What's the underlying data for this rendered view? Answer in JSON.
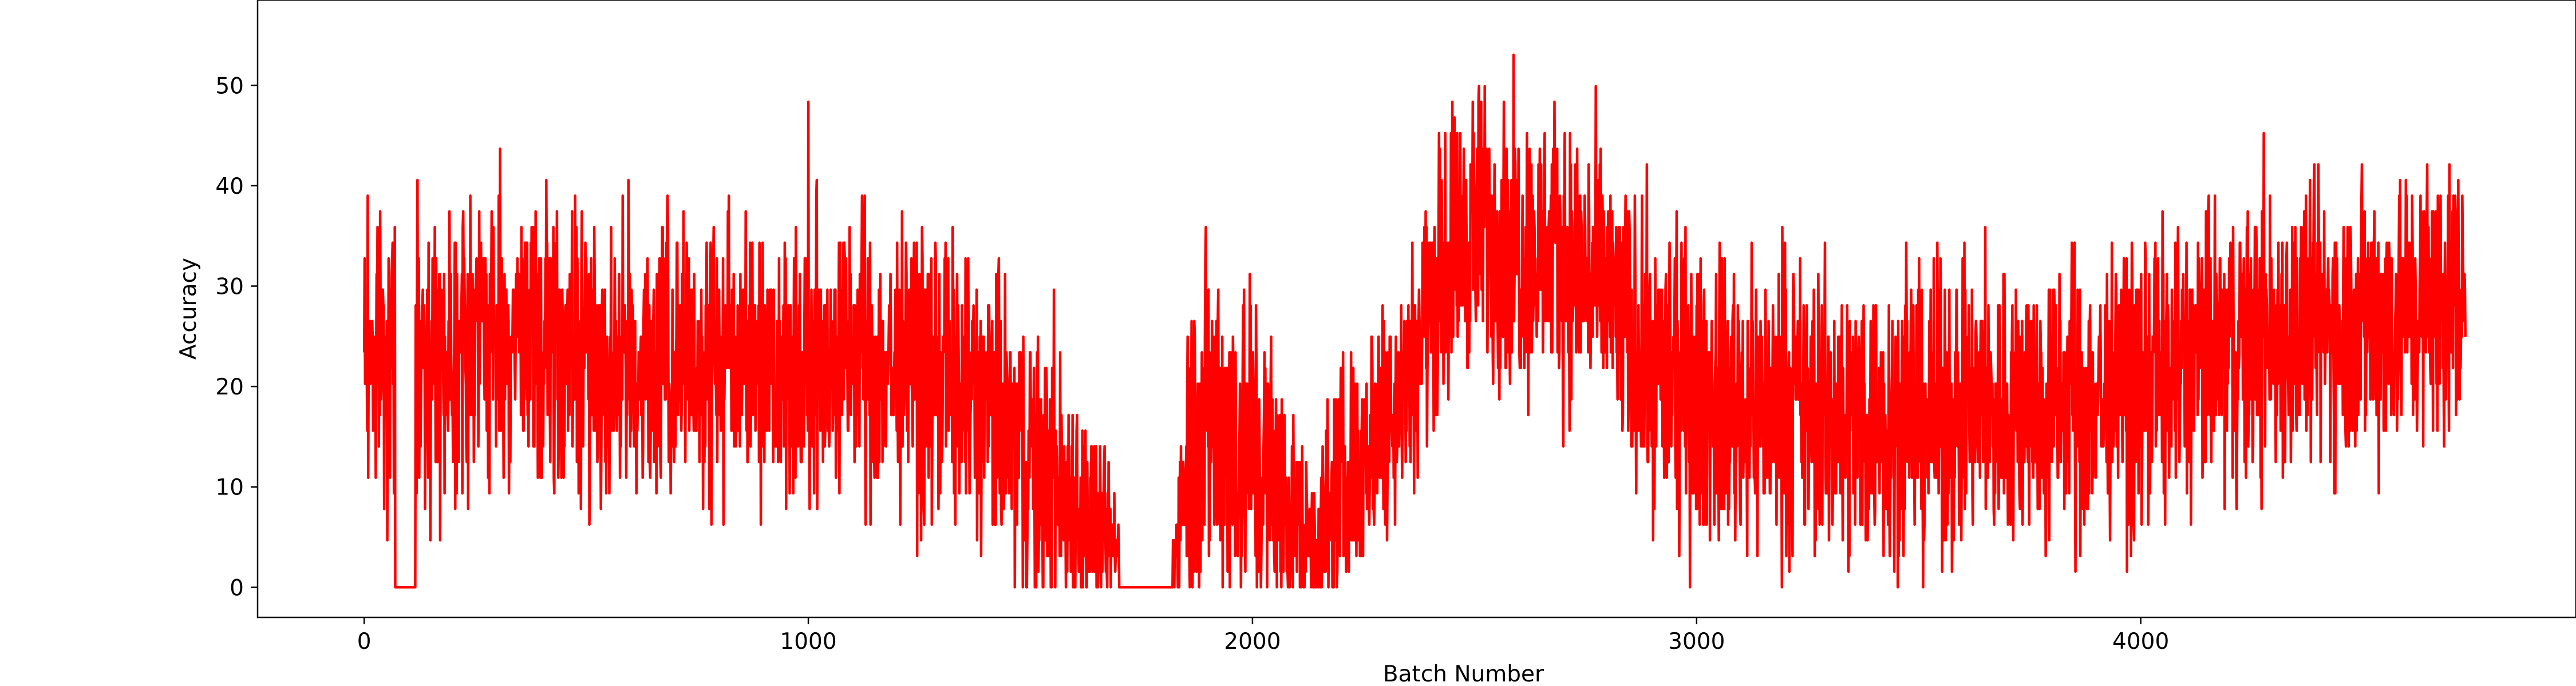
{
  "chart_data": {
    "type": "line",
    "title": "",
    "xlabel": "Batch Number",
    "ylabel": "Accuracy",
    "xlim": [
      -240,
      4980
    ],
    "ylim": [
      -3,
      58.5
    ],
    "xticks": [
      0,
      1000,
      2000,
      3000,
      4000
    ],
    "yticks": [
      0,
      10,
      20,
      30,
      40,
      50
    ],
    "grid": false,
    "legend": "none",
    "series": [
      {
        "color": "#ff0000",
        "x_start": 0,
        "x_step": 1,
        "length": 4732,
        "noise_seed": 7,
        "plateau_segments": [
          {
            "x": [
              70,
              115
            ],
            "value": 0
          },
          {
            "x": [
              1700,
              1820
            ],
            "value": 0
          }
        ],
        "envelope": {
          "x": [
            0,
            30,
            60,
            140,
            200,
            300,
            400,
            500,
            600,
            700,
            800,
            900,
            1000,
            1100,
            1200,
            1300,
            1400,
            1480,
            1550,
            1600,
            1660,
            1720,
            1830,
            1850,
            1900,
            1950,
            2000,
            2050,
            2100,
            2150,
            2200,
            2250,
            2300,
            2350,
            2400,
            2450,
            2500,
            2550,
            2600,
            2650,
            2700,
            2750,
            2800,
            2850,
            2900,
            3000,
            3100,
            3200,
            3300,
            3400,
            3500,
            3600,
            3700,
            3800,
            3900,
            4000,
            4100,
            4200,
            4300,
            4400,
            4500,
            4600,
            4700,
            4732
          ],
          "mean": [
            24,
            25,
            22,
            23,
            24,
            25,
            24,
            23,
            22,
            22,
            23,
            24,
            22,
            23,
            22,
            21,
            18,
            14,
            10,
            9,
            5,
            3,
            4,
            14,
            17,
            16,
            14,
            10,
            6,
            5,
            10,
            14,
            18,
            22,
            28,
            34,
            36,
            35,
            34,
            33,
            33,
            31,
            29,
            25,
            22,
            19,
            18,
            18,
            17,
            17,
            17,
            17,
            18,
            18,
            19,
            20,
            22,
            24,
            25,
            26,
            27,
            28,
            29,
            29
          ],
          "spread": [
            7,
            7,
            7,
            7,
            7,
            7,
            7,
            7,
            7,
            7,
            7,
            7,
            7,
            7,
            7,
            7,
            7,
            7,
            7,
            6,
            4,
            2,
            3,
            8,
            9,
            9,
            9,
            7,
            5,
            5,
            6,
            6,
            6,
            6,
            6,
            7,
            7,
            7,
            7,
            7,
            7,
            7,
            7,
            7,
            7,
            7,
            7,
            7,
            7,
            7,
            7,
            7,
            7,
            7,
            7,
            7,
            7,
            7,
            7,
            7,
            7,
            7,
            7,
            7
          ]
        }
      }
    ]
  }
}
